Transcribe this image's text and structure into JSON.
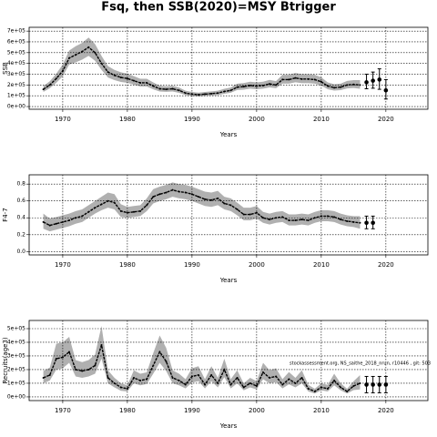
{
  "title": "Fsq, then SSB(2020)=MSY Btrigger",
  "chart_data": [
    {
      "type": "line",
      "ylabel": "SSB",
      "xlabel": "Years",
      "xlim": [
        1964.8,
        2026.5
      ],
      "xticks": [
        1970,
        1980,
        1990,
        2000,
        2010,
        2020
      ],
      "ylim": [
        -25000,
        735000
      ],
      "yticks": [
        {
          "value": 0,
          "label": "0e+00"
        },
        {
          "value": 100000,
          "label": "1e+05"
        },
        {
          "value": 200000,
          "label": "2e+05"
        },
        {
          "value": 300000,
          "label": "3e+05"
        },
        {
          "value": 400000,
          "label": "4e+05"
        },
        {
          "value": 500000,
          "label": "5e+05"
        },
        {
          "value": 600000,
          "label": "6e+05"
        },
        {
          "value": 700000,
          "label": "7e+05"
        }
      ],
      "grid": true,
      "color": "#000000",
      "band_color": "#b0b0b0",
      "x": [
        1967,
        1968,
        1969,
        1970,
        1971,
        1972,
        1973,
        1974,
        1975,
        1976,
        1977,
        1978,
        1979,
        1980,
        1981,
        1982,
        1983,
        1984,
        1985,
        1986,
        1987,
        1988,
        1989,
        1990,
        1991,
        1992,
        1993,
        1994,
        1995,
        1996,
        1997,
        1998,
        1999,
        2000,
        2001,
        2002,
        2003,
        2004,
        2005,
        2006,
        2007,
        2008,
        2009,
        2010,
        2011,
        2012,
        2013,
        2014,
        2015,
        2016
      ],
      "values": [
        160000,
        200000,
        260000,
        330000,
        450000,
        480000,
        510000,
        550000,
        500000,
        400000,
        320000,
        290000,
        270000,
        260000,
        240000,
        220000,
        220000,
        190000,
        165000,
        160000,
        165000,
        150000,
        125000,
        115000,
        110000,
        115000,
        120000,
        125000,
        140000,
        150000,
        180000,
        185000,
        195000,
        190000,
        195000,
        210000,
        200000,
        250000,
        250000,
        265000,
        255000,
        255000,
        250000,
        230000,
        190000,
        175000,
        180000,
        200000,
        205000,
        200000
      ],
      "lower": [
        135000,
        170000,
        220000,
        280000,
        390000,
        410000,
        435000,
        470000,
        425000,
        340000,
        270000,
        245000,
        228000,
        220000,
        203000,
        186000,
        186000,
        160000,
        140000,
        136000,
        140000,
        127000,
        106000,
        98000,
        93000,
        98000,
        102000,
        106000,
        119000,
        128000,
        153000,
        157000,
        166000,
        161000,
        166000,
        178000,
        170000,
        213000,
        213000,
        225000,
        217000,
        217000,
        212000,
        195000,
        161000,
        148000,
        152000,
        168000,
        172000,
        165000
      ],
      "upper": [
        190000,
        235000,
        305000,
        390000,
        520000,
        560000,
        590000,
        640000,
        580000,
        470000,
        375000,
        340000,
        318000,
        305000,
        282000,
        258000,
        258000,
        224000,
        194000,
        188000,
        194000,
        177000,
        147000,
        135000,
        129000,
        135000,
        141000,
        147000,
        165000,
        177000,
        212000,
        218000,
        230000,
        224000,
        230000,
        247000,
        236000,
        295000,
        295000,
        312000,
        300000,
        300000,
        295000,
        272000,
        224000,
        207000,
        213000,
        238000,
        245000,
        245000
      ],
      "forecast": {
        "x": [
          2017,
          2018,
          2019,
          2020
        ],
        "values": [
          225000,
          240000,
          250000,
          150000
        ],
        "lower": [
          165000,
          170000,
          160000,
          70000
        ],
        "upper": [
          300000,
          320000,
          350000,
          250000
        ]
      }
    },
    {
      "type": "line",
      "ylabel": "F4-7",
      "xlabel": "Years",
      "xlim": [
        1964.8,
        2026.5
      ],
      "xticks": [
        1970,
        1980,
        1990,
        2000,
        2010,
        2020
      ],
      "ylim": [
        -0.04,
        0.91
      ],
      "yticks": [
        {
          "value": 0,
          "label": "0.0"
        },
        0.2,
        0.4,
        0.6,
        0.8
      ],
      "grid": true,
      "color": "#000000",
      "band_color": "#b0b0b0",
      "x": [
        1967,
        1968,
        1969,
        1970,
        1971,
        1972,
        1973,
        1974,
        1975,
        1976,
        1977,
        1978,
        1979,
        1980,
        1981,
        1982,
        1983,
        1984,
        1985,
        1986,
        1987,
        1988,
        1989,
        1990,
        1991,
        1992,
        1993,
        1994,
        1995,
        1996,
        1997,
        1998,
        1999,
        2000,
        2001,
        2002,
        2003,
        2004,
        2005,
        2006,
        2007,
        2008,
        2009,
        2010,
        2011,
        2012,
        2013,
        2014,
        2015,
        2016
      ],
      "values": [
        0.35,
        0.31,
        0.33,
        0.35,
        0.37,
        0.4,
        0.42,
        0.47,
        0.52,
        0.56,
        0.6,
        0.58,
        0.48,
        0.46,
        0.47,
        0.48,
        0.55,
        0.65,
        0.68,
        0.7,
        0.73,
        0.71,
        0.7,
        0.68,
        0.65,
        0.62,
        0.61,
        0.63,
        0.57,
        0.55,
        0.5,
        0.44,
        0.44,
        0.46,
        0.4,
        0.38,
        0.4,
        0.41,
        0.37,
        0.37,
        0.38,
        0.37,
        0.4,
        0.42,
        0.42,
        0.41,
        0.38,
        0.36,
        0.35,
        0.34
      ],
      "lower": [
        0.27,
        0.24,
        0.26,
        0.28,
        0.3,
        0.33,
        0.35,
        0.4,
        0.45,
        0.49,
        0.52,
        0.5,
        0.41,
        0.4,
        0.41,
        0.42,
        0.48,
        0.57,
        0.6,
        0.62,
        0.65,
        0.63,
        0.62,
        0.6,
        0.57,
        0.54,
        0.53,
        0.55,
        0.5,
        0.48,
        0.43,
        0.37,
        0.37,
        0.39,
        0.34,
        0.32,
        0.34,
        0.35,
        0.31,
        0.31,
        0.32,
        0.31,
        0.34,
        0.36,
        0.36,
        0.35,
        0.32,
        0.3,
        0.29,
        0.27
      ],
      "upper": [
        0.45,
        0.39,
        0.41,
        0.43,
        0.45,
        0.48,
        0.5,
        0.55,
        0.6,
        0.65,
        0.7,
        0.68,
        0.56,
        0.53,
        0.54,
        0.55,
        0.63,
        0.74,
        0.77,
        0.79,
        0.82,
        0.8,
        0.79,
        0.77,
        0.74,
        0.71,
        0.7,
        0.72,
        0.65,
        0.63,
        0.58,
        0.52,
        0.52,
        0.54,
        0.47,
        0.45,
        0.47,
        0.48,
        0.44,
        0.44,
        0.45,
        0.44,
        0.47,
        0.49,
        0.49,
        0.48,
        0.45,
        0.43,
        0.42,
        0.42
      ],
      "forecast": {
        "x": [
          2017,
          2018
        ],
        "values": [
          0.34,
          0.34
        ],
        "lower": [
          0.27,
          0.27
        ],
        "upper": [
          0.42,
          0.42
        ]
      }
    },
    {
      "type": "line",
      "ylabel": "Recruits(age3)",
      "xlabel": "Years",
      "annotation": "stockassessment.org, NS_saithe_2018_nrun, r10446 , git: 503",
      "xlim": [
        1964.8,
        2026.5
      ],
      "xticks": [
        1970,
        1980,
        1990,
        2000,
        2010,
        2020
      ],
      "ylim": [
        -27000,
        560000
      ],
      "yticks": [
        {
          "value": 0,
          "label": "0e+00"
        },
        {
          "value": 100000,
          "label": "1e+05"
        },
        {
          "value": 200000,
          "label": "2e+05"
        },
        {
          "value": 300000,
          "label": "3e+05"
        },
        {
          "value": 400000,
          "label": "4e+05"
        },
        {
          "value": 500000,
          "label": "5e+05"
        }
      ],
      "grid": true,
      "color": "#000000",
      "band_color": "#b0b0b0",
      "x": [
        1967,
        1968,
        1969,
        1970,
        1971,
        1972,
        1973,
        1974,
        1975,
        1976,
        1977,
        1978,
        1979,
        1980,
        1981,
        1982,
        1983,
        1984,
        1985,
        1986,
        1987,
        1988,
        1989,
        1990,
        1991,
        1992,
        1993,
        1994,
        1995,
        1996,
        1997,
        1998,
        1999,
        2000,
        2001,
        2002,
        2003,
        2004,
        2005,
        2006,
        2007,
        2008,
        2009,
        2010,
        2011,
        2012,
        2013,
        2014,
        2015,
        2016
      ],
      "values": [
        140000,
        160000,
        280000,
        290000,
        330000,
        200000,
        190000,
        200000,
        230000,
        380000,
        140000,
        100000,
        70000,
        60000,
        140000,
        120000,
        130000,
        230000,
        330000,
        260000,
        140000,
        120000,
        90000,
        150000,
        160000,
        90000,
        160000,
        100000,
        200000,
        90000,
        140000,
        70000,
        100000,
        80000,
        180000,
        140000,
        150000,
        90000,
        130000,
        100000,
        140000,
        60000,
        40000,
        70000,
        60000,
        120000,
        70000,
        40000,
        80000,
        100000
      ],
      "lower": [
        100000,
        120000,
        200000,
        210000,
        250000,
        150000,
        140000,
        150000,
        170000,
        280000,
        100000,
        70000,
        45000,
        40000,
        100000,
        85000,
        95000,
        170000,
        250000,
        190000,
        100000,
        85000,
        62000,
        105000,
        115000,
        62000,
        115000,
        70000,
        145000,
        62000,
        100000,
        48000,
        70000,
        55000,
        130000,
        100000,
        108000,
        62000,
        92000,
        70000,
        100000,
        40000,
        25000,
        48000,
        40000,
        85000,
        48000,
        25000,
        50000,
        55000
      ],
      "upper": [
        190000,
        215000,
        390000,
        400000,
        440000,
        270000,
        255000,
        270000,
        310000,
        520000,
        195000,
        140000,
        100000,
        85000,
        195000,
        170000,
        180000,
        320000,
        450000,
        360000,
        195000,
        170000,
        130000,
        210000,
        225000,
        130000,
        225000,
        140000,
        280000,
        130000,
        195000,
        100000,
        140000,
        115000,
        250000,
        195000,
        210000,
        130000,
        182000,
        140000,
        195000,
        88000,
        60000,
        100000,
        88000,
        170000,
        100000,
        60000,
        115000,
        160000
      ],
      "forecast": {
        "x": [
          2017,
          2018,
          2019,
          2020
        ],
        "values": [
          90000,
          90000,
          90000,
          90000
        ],
        "lower": [
          30000,
          30000,
          30000,
          30000
        ],
        "upper": [
          150000,
          150000,
          150000,
          150000
        ]
      }
    }
  ]
}
